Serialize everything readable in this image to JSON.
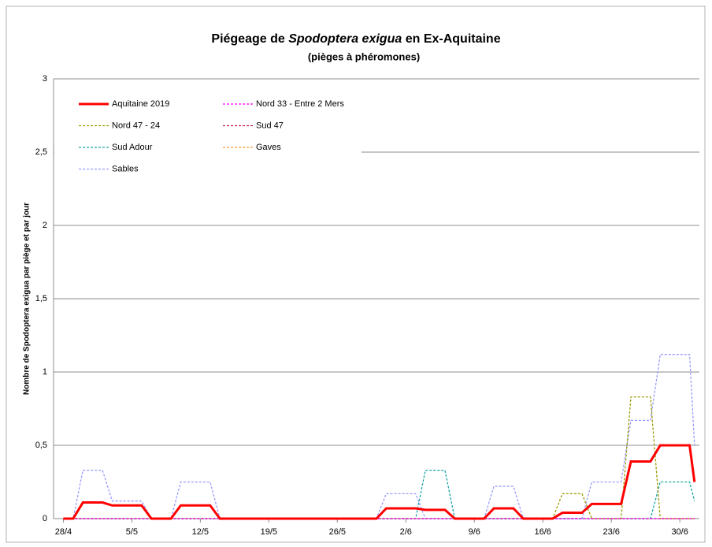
{
  "chart_data": {
    "type": "line",
    "title_parts": [
      "Piégeage de ",
      "Spodoptera exigua",
      " en Ex-Aquitaine"
    ],
    "subtitle": "(pièges à phéromones)",
    "y_label": "Nombre de Spodoptera exigua par piège et par jour",
    "x": [
      0,
      1,
      2,
      4,
      5,
      8,
      9,
      11,
      12,
      15,
      16,
      32,
      33,
      36,
      37,
      39,
      40,
      43,
      44,
      46,
      47,
      50,
      51,
      53,
      54,
      57,
      58,
      60,
      61,
      64,
      64.5
    ],
    "xlim": [
      -1,
      65
    ],
    "xticks": [
      {
        "value": 0,
        "label": "28/4"
      },
      {
        "value": 7,
        "label": "5/5"
      },
      {
        "value": 14,
        "label": "12/5"
      },
      {
        "value": 21,
        "label": "19/5"
      },
      {
        "value": 28,
        "label": "26/5"
      },
      {
        "value": 35,
        "label": "2/6"
      },
      {
        "value": 42,
        "label": "9/6"
      },
      {
        "value": 49,
        "label": "16/6"
      },
      {
        "value": 56,
        "label": "23/6"
      },
      {
        "value": 63,
        "label": "30/6"
      }
    ],
    "ylim": [
      0,
      3
    ],
    "yticks": [
      0,
      {
        "value": 0.5,
        "label": "0,5"
      },
      1,
      {
        "value": 1.5,
        "label": "1,5"
      },
      2,
      {
        "value": 2.5,
        "label": "2,5"
      },
      3
    ],
    "grid": true,
    "legend": "top-left",
    "series": [
      {
        "name": "Aquitaine 2019",
        "color": "#ff0000",
        "values": [
          0,
          0,
          0.11,
          0.11,
          0.09,
          0.09,
          0,
          0,
          0.09,
          0.09,
          0,
          0,
          0.07,
          0.07,
          0.06,
          0.06,
          0,
          0,
          0.07,
          0.07,
          0,
          0,
          0.04,
          0.04,
          0.1,
          0.1,
          0.39,
          0.39,
          0.5,
          0.5,
          0.25
        ]
      },
      {
        "name": "Nord 33 - Entre 2 Mers",
        "color": "#ff00ff",
        "values": [
          0,
          0,
          0,
          0,
          0,
          0,
          0,
          0,
          0,
          0,
          0,
          0,
          0,
          0,
          0,
          0,
          0,
          0,
          0,
          0,
          0,
          0,
          0,
          0,
          0,
          0,
          0,
          0,
          0,
          0,
          0
        ]
      },
      {
        "name": "Nord 47 - 24",
        "color": "#999900",
        "values": [
          0,
          0,
          0,
          0,
          0,
          0,
          0,
          0,
          0,
          0,
          0,
          0,
          0,
          0,
          0,
          0,
          0,
          0,
          0,
          0,
          0,
          0,
          0.17,
          0.17,
          0,
          0,
          0.83,
          0.83,
          0,
          0,
          0
        ]
      },
      {
        "name": "Sud 47",
        "color": "#c0145a",
        "values": [
          0,
          0,
          0,
          0,
          0,
          0,
          0,
          0,
          0,
          0,
          0,
          0,
          0,
          0,
          0,
          0,
          0,
          0,
          0,
          0,
          0,
          0,
          0,
          0,
          0,
          0,
          0,
          0,
          0,
          0,
          0
        ]
      },
      {
        "name": "Sud Adour",
        "color": "#1aa3a3",
        "values": [
          0,
          0,
          0,
          0,
          0,
          0,
          0,
          0,
          0,
          0,
          0,
          0,
          0,
          0,
          0.33,
          0.33,
          0,
          0,
          0,
          0,
          0,
          0,
          0,
          0,
          0,
          0,
          0,
          0,
          0.25,
          0.25,
          0.12
        ]
      },
      {
        "name": "Gaves",
        "color": "#ff9933",
        "values": [
          0,
          0,
          0,
          0,
          0,
          0,
          0,
          0,
          0,
          0,
          0,
          0,
          0,
          0,
          0,
          0,
          0,
          0,
          0,
          0,
          0,
          0,
          0,
          0,
          0,
          0,
          0,
          0,
          0,
          0,
          0
        ]
      },
      {
        "name": "Sables",
        "color": "#9999ff",
        "values": [
          0,
          0,
          0.33,
          0.33,
          0.12,
          0.12,
          0,
          0,
          0.25,
          0.25,
          0,
          0,
          0.17,
          0.17,
          0,
          0,
          0,
          0,
          0.22,
          0.22,
          0,
          0,
          0,
          0,
          0.25,
          0.25,
          0.67,
          0.67,
          1.12,
          1.12,
          0.5
        ]
      }
    ]
  }
}
